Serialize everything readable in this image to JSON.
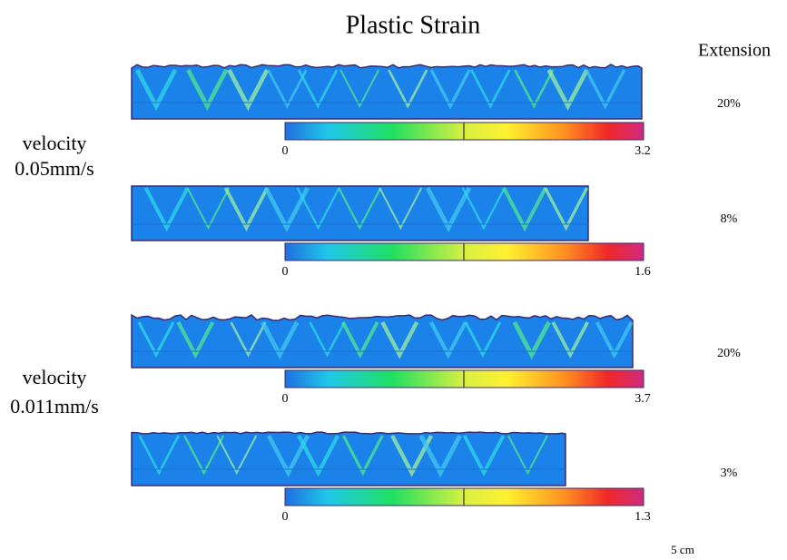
{
  "title": "Plastic Strain",
  "extension_header": "Extension",
  "groups": [
    {
      "velocity": [
        "velocity",
        "0.05mm/s"
      ],
      "panels": [
        {
          "extension": "20%",
          "colorbar_min": "0",
          "colorbar_max": "3.2"
        },
        {
          "extension": "8%",
          "colorbar_min": "0",
          "colorbar_max": "1.6"
        }
      ]
    },
    {
      "velocity": [
        "velocity",
        "0.011mm/s"
      ],
      "panels": [
        {
          "extension": "20%",
          "colorbar_min": "0",
          "colorbar_max": "3.7"
        },
        {
          "extension": "3%",
          "colorbar_min": "0",
          "colorbar_max": "1.3"
        }
      ]
    }
  ],
  "scale_label": "5 cm"
}
